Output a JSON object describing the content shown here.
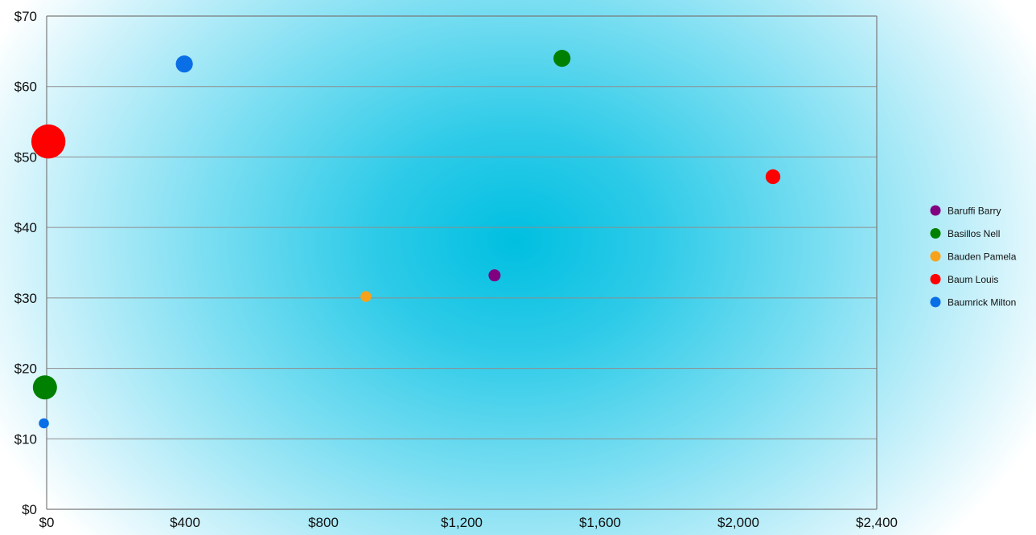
{
  "chart_data": {
    "type": "scatter",
    "bubble": true,
    "title": "",
    "xlabel": "",
    "ylabel": "",
    "xlim": [
      0,
      2400
    ],
    "ylim": [
      0,
      70
    ],
    "x_ticks": [
      0,
      400,
      800,
      1200,
      1600,
      2000,
      2400
    ],
    "y_ticks": [
      0,
      10,
      20,
      30,
      40,
      50,
      60,
      70
    ],
    "x_tick_labels": [
      "$0",
      "$400",
      "$800",
      "$1,200",
      "$1,600",
      "$2,000",
      "$2,400"
    ],
    "y_tick_labels": [
      "$0",
      "$10",
      "$20",
      "$30",
      "$40",
      "$50",
      "$60",
      "$70"
    ],
    "grid": "horizontal",
    "legend_position": "right",
    "series": [
      {
        "name": "Baruffi Barry",
        "color": "#800080",
        "points": [
          {
            "x": 1295,
            "y": 33.2,
            "size": 1
          }
        ]
      },
      {
        "name": "Basillos Nell",
        "color": "#008000",
        "points": [
          {
            "x": 1490,
            "y": 64.0,
            "size": 2
          },
          {
            "x": -5,
            "y": 17.3,
            "size": 4
          }
        ]
      },
      {
        "name": "Bauden Pamela",
        "color": "#f7a21b",
        "points": [
          {
            "x": 923,
            "y": 30.2,
            "size": 0.8
          }
        ]
      },
      {
        "name": "Baum Louis",
        "color": "#ff0000",
        "points": [
          {
            "x": 2100,
            "y": 47.2,
            "size": 1.5
          },
          {
            "x": 5,
            "y": 52.2,
            "size": 8
          }
        ]
      },
      {
        "name": "Baumrick Milton",
        "color": "#0a6ee6",
        "points": [
          {
            "x": 398,
            "y": 63.2,
            "size": 2
          },
          {
            "x": -8,
            "y": 12.2,
            "size": 0.7
          }
        ]
      }
    ]
  }
}
